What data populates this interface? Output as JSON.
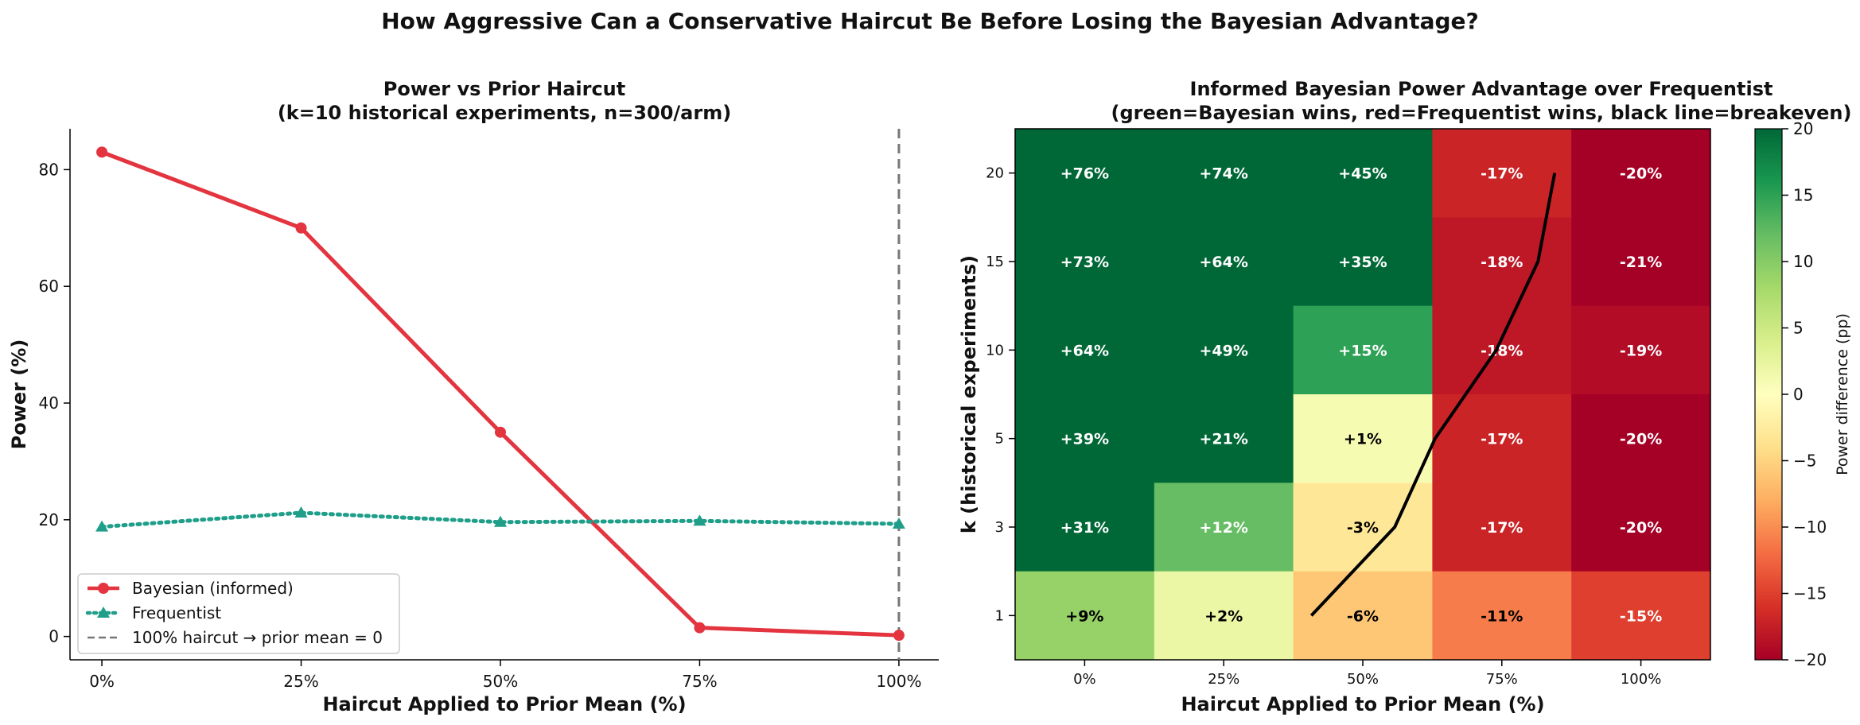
{
  "suptitle": "How Aggressive Can a Conservative Haircut Be Before Losing the Bayesian Advantage?",
  "chart_data": [
    {
      "type": "line",
      "title": "Power vs Prior Haircut\n(k=10 historical experiments, n=300/arm)",
      "xlabel": "Haircut Applied to Prior Mean (%)",
      "ylabel": "Power (%)",
      "x": [
        0,
        25,
        50,
        75,
        100
      ],
      "x_tick_labels": [
        "0%",
        "25%",
        "50%",
        "75%",
        "100%"
      ],
      "xlim": [
        -4,
        105
      ],
      "ylim": [
        -4,
        87
      ],
      "y_ticks": [
        0,
        20,
        40,
        60,
        80
      ],
      "grid": false,
      "legend_position": "lower-left",
      "series": [
        {
          "name": "Bayesian (informed)",
          "values": [
            83.0,
            70.0,
            35.0,
            1.5,
            0.2
          ],
          "color": "#e3343f",
          "style": "solid",
          "marker": "circle"
        },
        {
          "name": "Frequentist",
          "values": [
            18.8,
            21.2,
            19.6,
            19.8,
            19.3
          ],
          "color": "#1f9e89",
          "style": "dotted",
          "marker": "triangle"
        }
      ],
      "vline": {
        "x": 100,
        "label": "100% haircut → prior mean = 0",
        "color": "#777777",
        "style": "dashed"
      }
    },
    {
      "type": "heatmap",
      "title": "Informed Bayesian Power Advantage over Frequentist\n(green=Bayesian wins, red=Frequentist wins, black line=breakeven)",
      "xlabel": "Haircut Applied to Prior Mean (%)",
      "ylabel": "k (historical experiments)",
      "x_categories": [
        "0%",
        "25%",
        "50%",
        "75%",
        "100%"
      ],
      "y_categories": [
        "20",
        "15",
        "10",
        "5",
        "3",
        "1"
      ],
      "values": [
        [
          76,
          74,
          45,
          -17,
          -20
        ],
        [
          73,
          64,
          35,
          -18,
          -21
        ],
        [
          64,
          49,
          15,
          -18,
          -19
        ],
        [
          39,
          21,
          1,
          -17,
          -20
        ],
        [
          31,
          12,
          -3,
          -17,
          -20
        ],
        [
          9,
          2,
          -6,
          -11,
          -15
        ]
      ],
      "cell_labels": [
        [
          "+76%",
          "+74%",
          "+45%",
          "-17%",
          "-20%"
        ],
        [
          "+73%",
          "+64%",
          "+35%",
          "-18%",
          "-21%"
        ],
        [
          "+64%",
          "+49%",
          "+15%",
          "-18%",
          "-19%"
        ],
        [
          "+39%",
          "+21%",
          "+1%",
          "-17%",
          "-20%"
        ],
        [
          "+31%",
          "+12%",
          "-3%",
          "-17%",
          "-20%"
        ],
        [
          "+9%",
          "+2%",
          "-6%",
          "-11%",
          "-15%"
        ]
      ],
      "colormap": "RdYlGn",
      "vmin": -20,
      "vmax": 20,
      "colorbar_label": "Power difference (pp)",
      "colorbar_ticks": [
        20,
        15,
        10,
        5,
        0,
        -5,
        -10,
        -15,
        -20
      ],
      "colorbar_tick_labels": [
        "20",
        "15",
        "10",
        "5",
        "0",
        "−5",
        "−10",
        "−15",
        "−20"
      ],
      "breakeven_line": {
        "color": "#000000",
        "points": [
          {
            "col": 1.63,
            "row": 5
          },
          {
            "col": 2.23,
            "row": 4
          },
          {
            "col": 2.52,
            "row": 3
          },
          {
            "col": 2.96,
            "row": 2
          },
          {
            "col": 3.26,
            "row": 1
          },
          {
            "col": 3.38,
            "row": 0
          }
        ]
      }
    }
  ]
}
